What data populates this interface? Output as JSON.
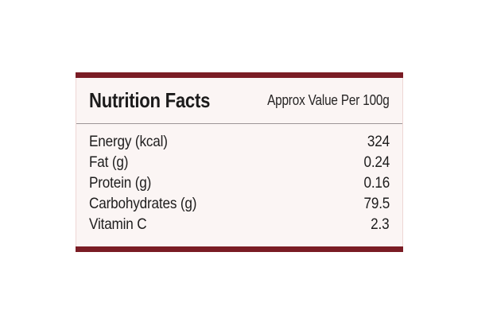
{
  "card": {
    "title": "Nutrition Facts",
    "subtitle": "Approx Value Per 100g",
    "rows": [
      {
        "label": "Energy (kcal)",
        "value": "324"
      },
      {
        "label": "Fat (g)",
        "value": "0.24"
      },
      {
        "label": "Protein (g)",
        "value": "0.16"
      },
      {
        "label": "Carbohydrates (g)",
        "value": "79.5"
      },
      {
        "label": "Vitamin C",
        "value": "2.3"
      }
    ],
    "colors": {
      "accent_maroon": "#7a1c24",
      "card_background": "#fbf5f4",
      "text": "#1e1d1d",
      "divider": "#9c9597",
      "side_border": "#eed7d5",
      "page_background": "#ffffff"
    }
  }
}
